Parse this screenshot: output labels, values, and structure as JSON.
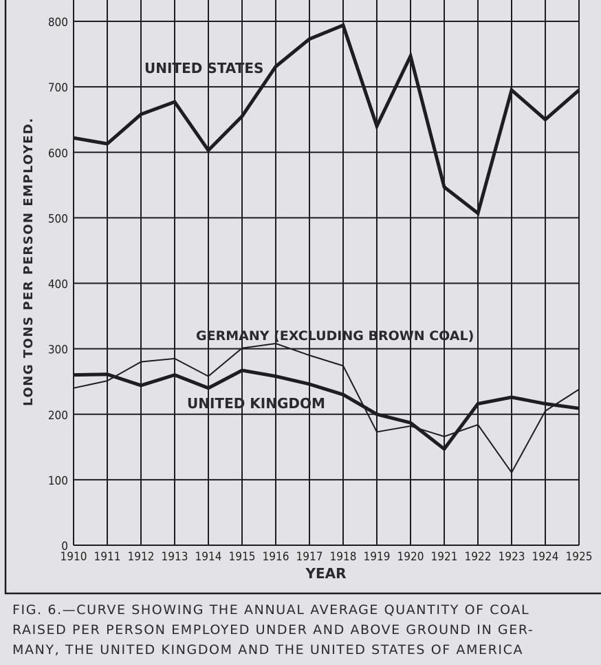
{
  "chart_data": {
    "type": "line",
    "ylabel": "LONG TONS PER PERSON EMPLOYED.",
    "xlabel": "YEAR",
    "ylim": [
      0,
      800
    ],
    "yticks": [
      0,
      100,
      200,
      300,
      400,
      500,
      600,
      700,
      800
    ],
    "x": [
      1910,
      1911,
      1912,
      1913,
      1914,
      1915,
      1916,
      1917,
      1918,
      1919,
      1920,
      1921,
      1922,
      1923,
      1924,
      1925
    ],
    "grid": true,
    "series": [
      {
        "name": "UNITED STATES",
        "style": "thick",
        "values": [
          622,
          613,
          658,
          677,
          603,
          655,
          731,
          773,
          794,
          640,
          747,
          547,
          507,
          695,
          650,
          695
        ]
      },
      {
        "name": "GERMANY (EXCLUDING BROWN COAL)",
        "style": "thin",
        "values": [
          240,
          251,
          280,
          285,
          258,
          301,
          308,
          290,
          274,
          173,
          182,
          166,
          184,
          111,
          205,
          238
        ]
      },
      {
        "name": "UNITED KINGDOM",
        "style": "thick",
        "values": [
          260,
          261,
          244,
          260,
          240,
          267,
          258,
          246,
          230,
          200,
          187,
          147,
          216,
          226,
          216,
          209
        ]
      }
    ],
    "caption": [
      "FIG. 6.—CURVE SHOWING THE ANNUAL AVERAGE QUANTITY OF COAL",
      "RAISED PER PERSON EMPLOYED UNDER AND ABOVE GROUND IN GER-",
      "MANY, THE UNITED KINGDOM AND THE UNITED STATES OF AMERICA"
    ],
    "colors": {
      "ink": "#1e1e20",
      "paper": "#e3e3e5"
    }
  }
}
